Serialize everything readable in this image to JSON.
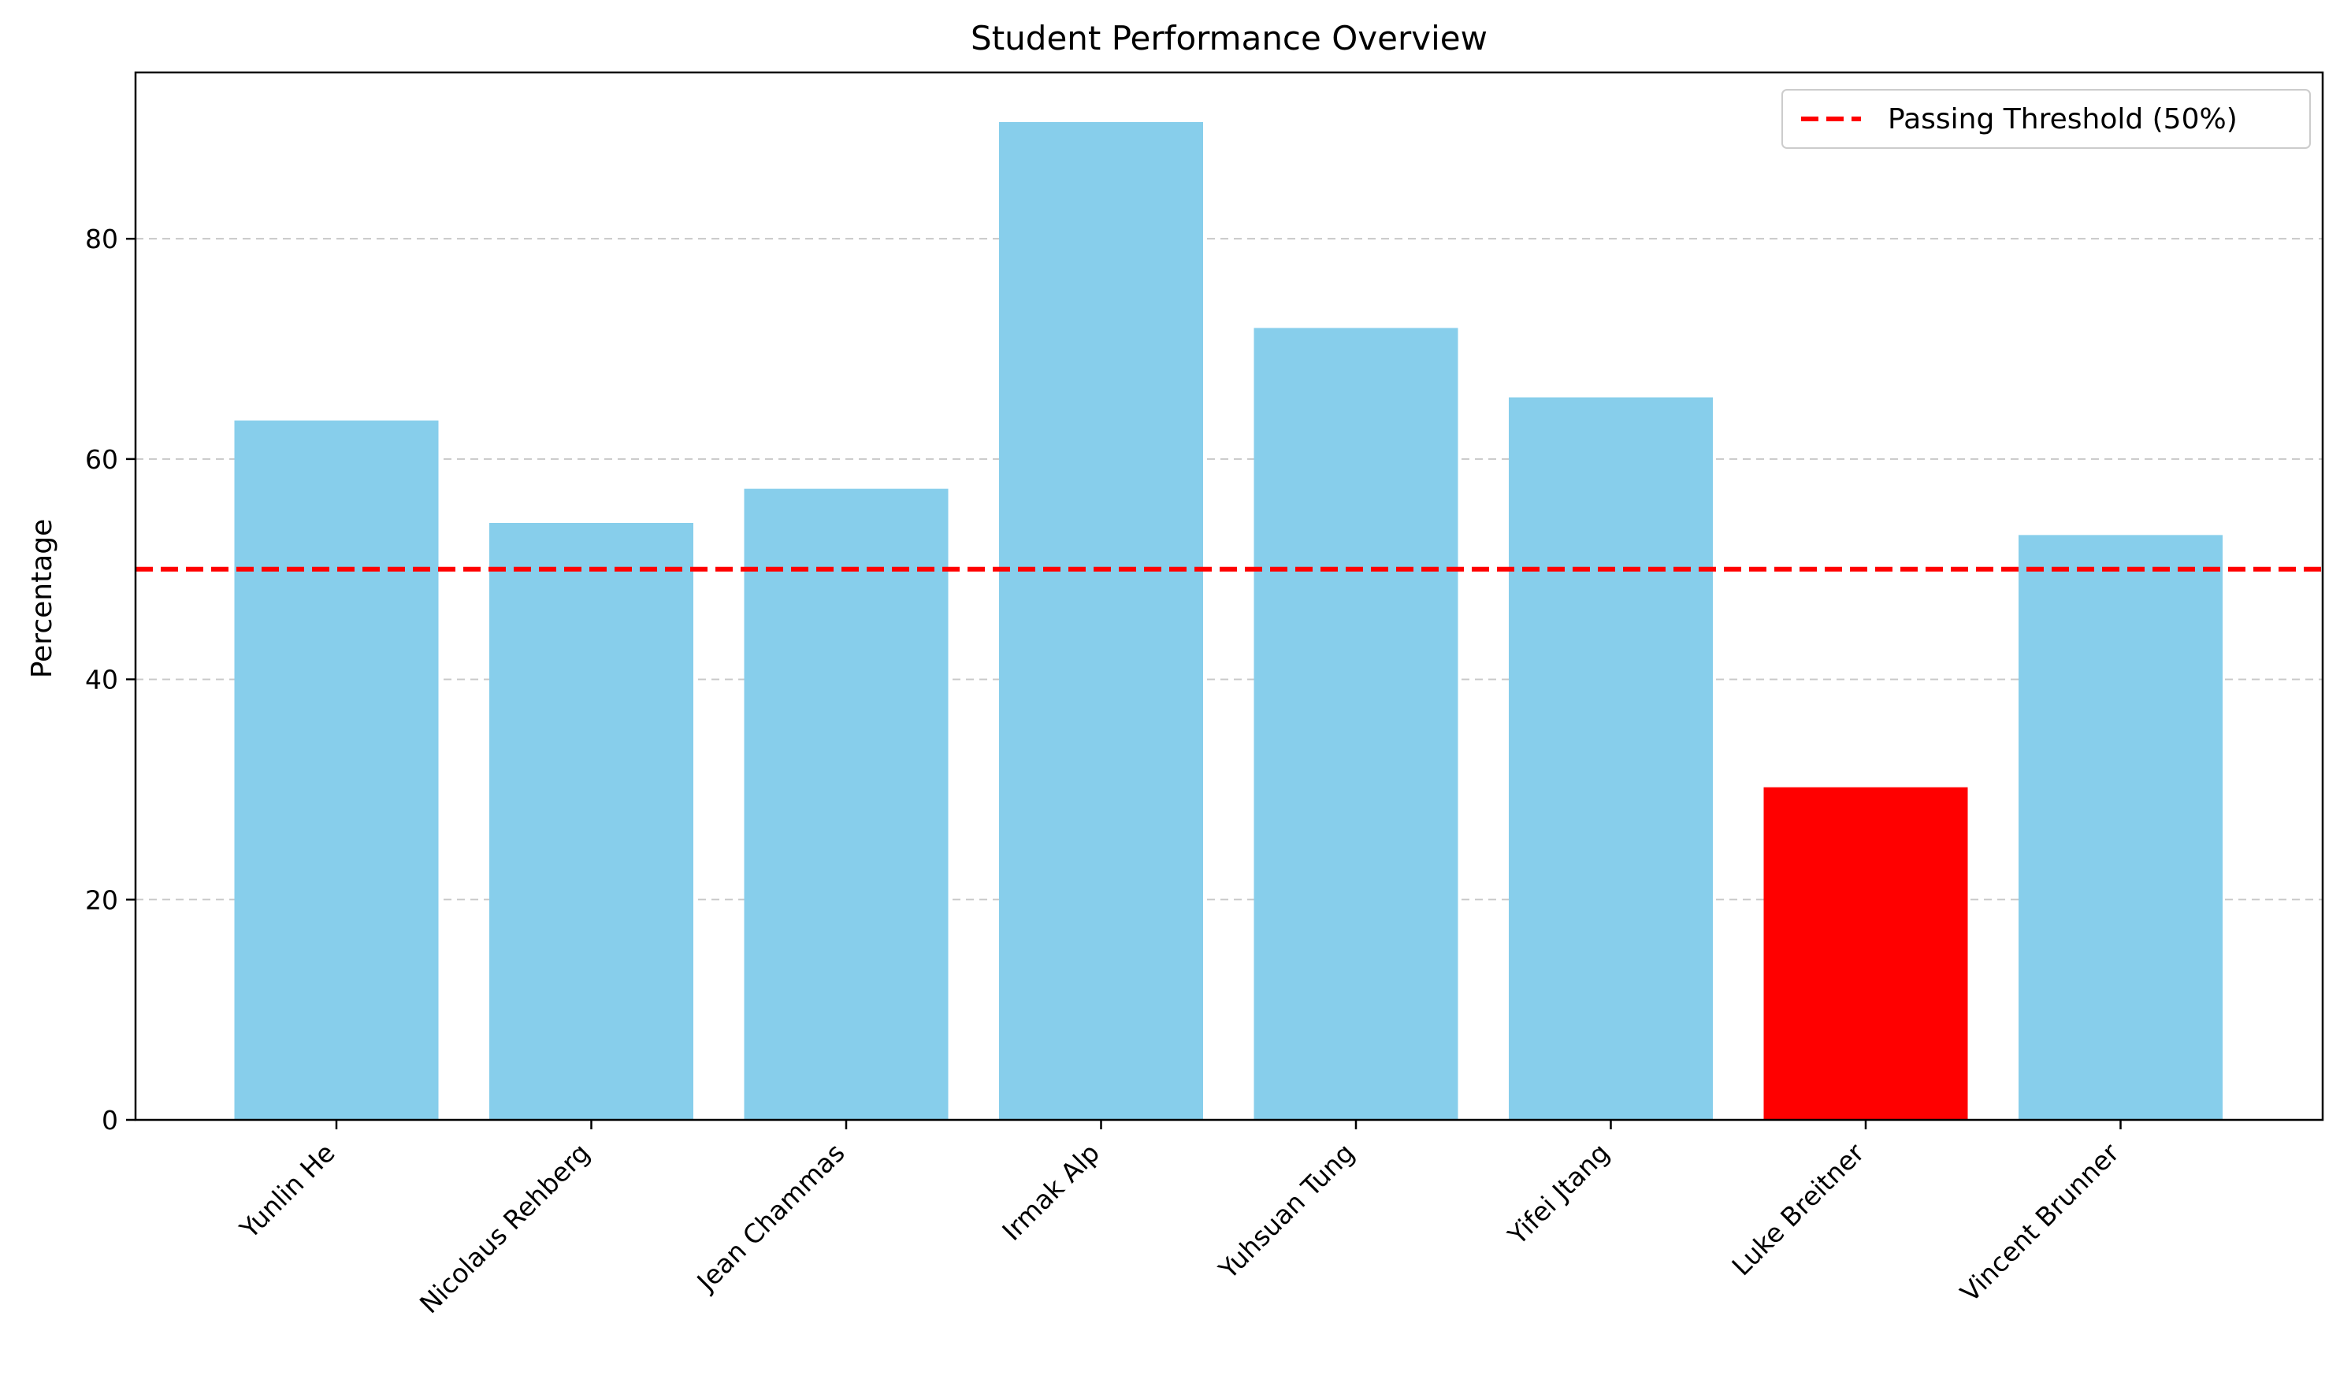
{
  "chart_data": {
    "type": "bar",
    "title": "Student Performance Overview",
    "xlabel": "",
    "ylabel": "Percentage",
    "categories": [
      "Yunlin He",
      "Nicolaus Rehberg",
      "Jean Chammas",
      "Irmak Alp",
      "Yuhsuan Tung",
      "Yifei Jtang",
      "Luke Breitner",
      "Vincent Brunner"
    ],
    "values": [
      63.5,
      54.2,
      57.3,
      90.6,
      71.9,
      65.6,
      30.2,
      53.1
    ],
    "bar_colors": [
      "#87ceeb",
      "#87ceeb",
      "#87ceeb",
      "#87ceeb",
      "#87ceeb",
      "#87ceeb",
      "#ff0000",
      "#87ceeb"
    ],
    "ylim": [
      0,
      95.1
    ],
    "yticks": [
      0,
      20,
      40,
      60,
      80
    ],
    "grid": "y-dashed",
    "threshold": {
      "value": 50,
      "label": "Passing Threshold (50%)",
      "color": "#ff0000",
      "style": "dashed"
    },
    "legend_position": "top-right"
  }
}
